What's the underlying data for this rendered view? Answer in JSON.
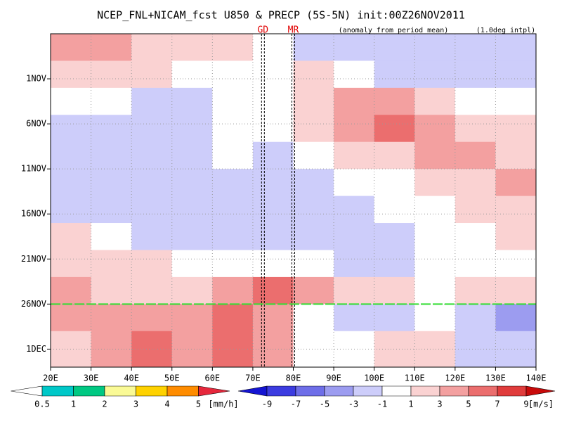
{
  "chart_data": {
    "type": "heatmap",
    "title": "NCEP_FNL+NICAM_fcst U850 & PRECP (5S-5N) init:00Z26NOV2011",
    "subtitle": "(anomaly from period mean)",
    "note": "(1.0deg intpl)",
    "xlim": [
      20,
      140
    ],
    "xticks": [
      {
        "value": 20,
        "label": "20E"
      },
      {
        "value": 30,
        "label": "30E"
      },
      {
        "value": 40,
        "label": "40E"
      },
      {
        "value": 50,
        "label": "50E"
      },
      {
        "value": 60,
        "label": "60E"
      },
      {
        "value": 70,
        "label": "70E"
      },
      {
        "value": 80,
        "label": "80E"
      },
      {
        "value": 90,
        "label": "90E"
      },
      {
        "value": 100,
        "label": "100E"
      },
      {
        "value": 110,
        "label": "110E"
      },
      {
        "value": 120,
        "label": "120E"
      },
      {
        "value": 130,
        "label": "130E"
      },
      {
        "value": 140,
        "label": "140E"
      }
    ],
    "ylim": [
      -5,
      32
    ],
    "yticks": [
      {
        "value": 0,
        "label": "1NOV"
      },
      {
        "value": 5,
        "label": "6NOV"
      },
      {
        "value": 10,
        "label": "11NOV"
      },
      {
        "value": 15,
        "label": "16NOV"
      },
      {
        "value": 20,
        "label": "21NOV"
      },
      {
        "value": 25,
        "label": "26NOV"
      },
      {
        "value": 30,
        "label": "1DEC"
      }
    ],
    "grid": true,
    "x_edges": [
      20,
      30,
      40,
      50,
      60,
      70,
      80,
      90,
      100,
      110,
      120,
      130,
      140
    ],
    "y_edges": [
      -5,
      -2,
      1,
      4,
      7,
      10,
      13,
      16,
      19,
      22,
      25,
      28,
      32
    ],
    "values": [
      [
        3,
        3,
        2,
        2,
        1,
        0,
        -3,
        -3,
        -3,
        -3,
        -3,
        -2
      ],
      [
        2,
        1,
        1,
        0,
        -1,
        0,
        1,
        -1,
        -2,
        -3,
        -3,
        -2
      ],
      [
        -1,
        -1,
        -2,
        -2,
        -1,
        0,
        2,
        4,
        3,
        2,
        0,
        -1
      ],
      [
        -2,
        -2,
        -3,
        -2,
        -1,
        -1,
        1,
        3,
        5,
        4,
        2,
        1
      ],
      [
        -2,
        -3,
        -3,
        -2,
        -1,
        -2,
        -1,
        1,
        2,
        3,
        3,
        2
      ],
      [
        -3,
        -3,
        -3,
        -2,
        -2,
        -3,
        -2,
        -1,
        0,
        1,
        2,
        3
      ],
      [
        -2,
        -3,
        -2,
        -2,
        -3,
        -3,
        -3,
        -2,
        -1,
        0,
        2,
        2
      ],
      [
        1,
        -1,
        -2,
        -3,
        -3,
        -2,
        -3,
        -2,
        -2,
        -1,
        0,
        1
      ],
      [
        2,
        2,
        1,
        0,
        -1,
        0,
        -1,
        -2,
        -2,
        -1,
        -1,
        0
      ],
      [
        3,
        2,
        2,
        2,
        3,
        5,
        3,
        2,
        1,
        0,
        1,
        1
      ],
      [
        3,
        3,
        4,
        4,
        5,
        4,
        -1,
        -2,
        -2,
        -1,
        -3,
        -4
      ],
      [
        2,
        3,
        5,
        4,
        5,
        3,
        -1,
        0,
        1,
        2,
        -2,
        -3
      ]
    ],
    "colorbar": {
      "levels": [
        -9,
        -7,
        -5,
        -3,
        -1,
        1,
        3,
        5,
        7,
        9
      ],
      "colors": [
        "#1414d2",
        "#3c3ce0",
        "#6e6ee8",
        "#9c9cf0",
        "#cdcdfa",
        "#ffffff",
        "#fad2d2",
        "#f3a0a0",
        "#eb6e6e",
        "#e03c3c",
        "#c80a0a"
      ],
      "unit": "[m/s]"
    },
    "precip_colorbar": {
      "levels": [
        0.5,
        1,
        2,
        3,
        4,
        5
      ],
      "colors": [
        "#ffffff",
        "#00c8c8",
        "#00c882",
        "#fafa96",
        "#ffd200",
        "#ff8c00",
        "#e6283c"
      ],
      "unit": "[mm/h]"
    },
    "lines": [
      {
        "x": 72.5,
        "label": "GD"
      },
      {
        "x": 80,
        "label": "MR"
      }
    ],
    "init_line": 25
  }
}
